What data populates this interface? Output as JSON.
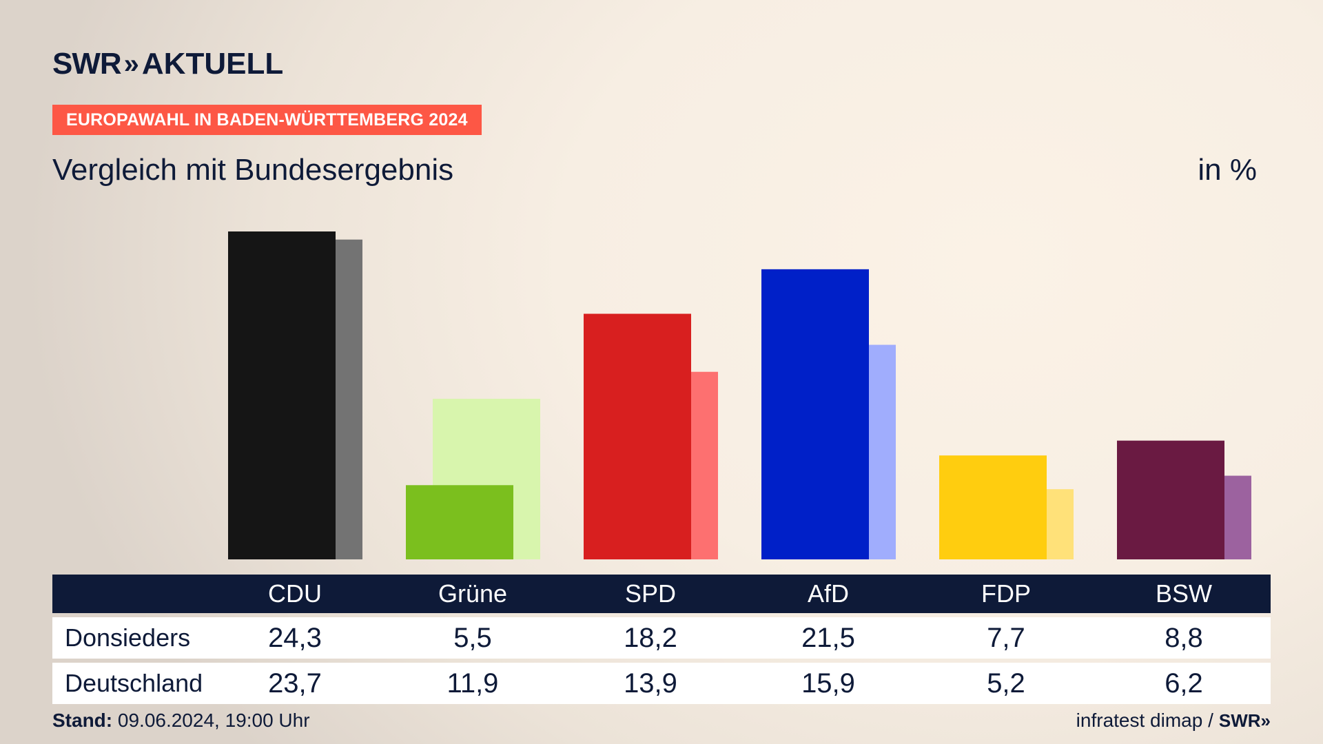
{
  "header": {
    "brand_swr": "SWR",
    "brand_chevrons": "»",
    "brand_aktuell": "AKTUELL",
    "tag": "EUROPAWAHL IN BADEN-WÜRTTEMBERG 2024",
    "subtitle": "Vergleich mit Bundesergebnis",
    "unit": "in %"
  },
  "colors": {
    "tag_bg": "#fd5745",
    "navy": "#0e1a38"
  },
  "chart_data": {
    "type": "bar",
    "categories": [
      "CDU",
      "Grüne",
      "SPD",
      "AfD",
      "FDP",
      "BSW"
    ],
    "series": [
      {
        "name": "Donsieders",
        "values": [
          24.3,
          5.5,
          18.2,
          21.5,
          7.7,
          8.8
        ],
        "colors": [
          "#151515",
          "#7bbf1e",
          "#d81f1f",
          "#0020c8",
          "#ffcd0f",
          "#6a1a42"
        ]
      },
      {
        "name": "Deutschland",
        "values": [
          23.7,
          11.9,
          13.9,
          15.9,
          5.2,
          6.2
        ],
        "colors": [
          "#737373",
          "#d8f5ad",
          "#fd7070",
          "#a0adfd",
          "#ffe179",
          "#9c629f"
        ]
      }
    ],
    "ylim": [
      0,
      24.3
    ],
    "legend": "table-below"
  },
  "table": {
    "rows": [
      {
        "label": "Donsieders",
        "values": [
          "24,3",
          "5,5",
          "18,2",
          "21,5",
          "7,7",
          "8,8"
        ]
      },
      {
        "label": "Deutschland",
        "values": [
          "23,7",
          "11,9",
          "13,9",
          "15,9",
          "5,2",
          "6,2"
        ]
      }
    ]
  },
  "footer": {
    "stand_label": "Stand:",
    "stand_value": "09.06.2024, 19:00 Uhr",
    "source": "infratest dimap /",
    "source_brand": "SWR»"
  }
}
